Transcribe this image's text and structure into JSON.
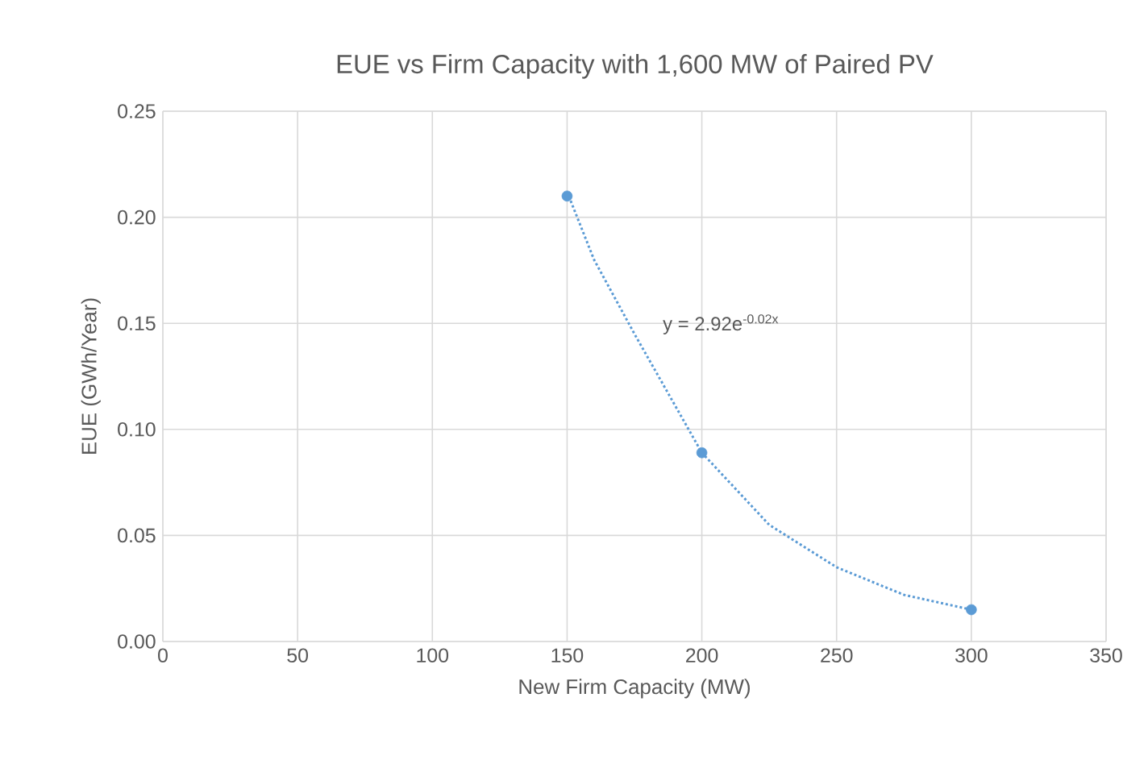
{
  "chart_data": {
    "type": "scatter",
    "title": "EUE vs Firm Capacity with 1,600 MW of Paired PV",
    "xlabel": "New Firm Capacity (MW)",
    "ylabel": "EUE (GWh/Year)",
    "series": [
      {
        "color": "#5b9bd5",
        "marker": "circle",
        "x": [
          150,
          200,
          300
        ],
        "values": [
          0.21,
          0.089,
          0.015
        ]
      },
      {
        "type": "line",
        "color": "#5b9bd5",
        "line_style": "dotted",
        "marker": "none",
        "x": [
          150,
          160,
          175,
          200,
          225,
          250,
          275,
          300
        ],
        "values": [
          0.212,
          0.18,
          0.145,
          0.089,
          0.055,
          0.035,
          0.022,
          0.015
        ]
      }
    ],
    "annotations": [
      "y = 2.92e$^{-0.02x}$"
    ],
    "xlim": [
      0,
      350
    ],
    "xticks": [
      0,
      50,
      100,
      150,
      200,
      250,
      300,
      350
    ],
    "ylim": [
      0,
      0.25
    ],
    "yticks": [
      {
        "value": 0,
        "label": "0.00"
      },
      {
        "value": 0.05,
        "label": "0.05"
      },
      {
        "value": 0.1,
        "label": "0.10"
      },
      {
        "value": 0.15,
        "label": "0.15"
      },
      {
        "value": 0.2,
        "label": "0.20"
      },
      {
        "value": 0.25,
        "label": "0.25"
      }
    ],
    "grid": true
  }
}
